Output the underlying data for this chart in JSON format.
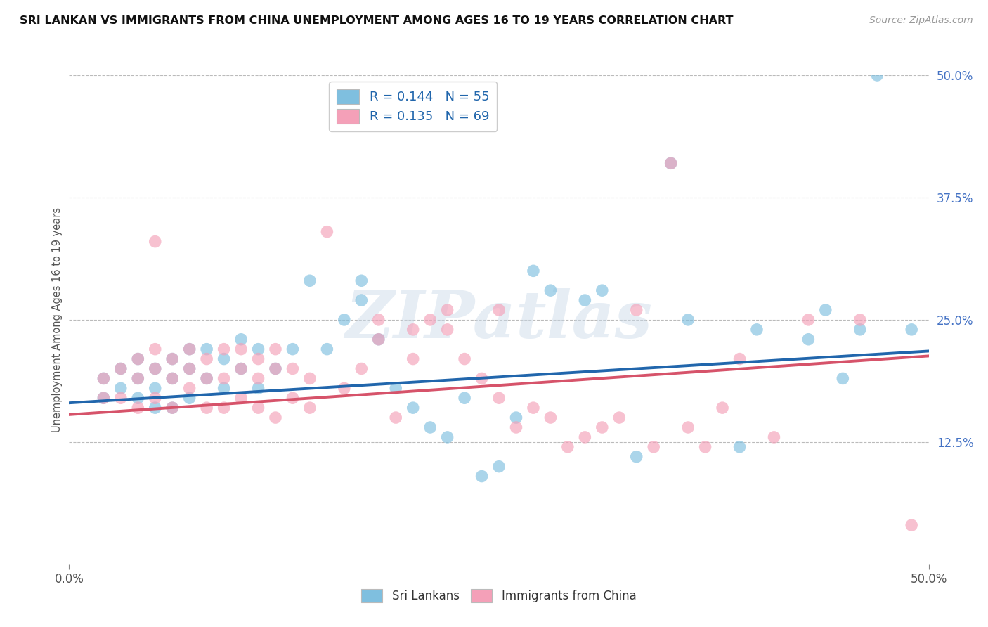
{
  "title": "SRI LANKAN VS IMMIGRANTS FROM CHINA UNEMPLOYMENT AMONG AGES 16 TO 19 YEARS CORRELATION CHART",
  "source": "Source: ZipAtlas.com",
  "ylabel": "Unemployment Among Ages 16 to 19 years",
  "legend_blue_r": "R = 0.144",
  "legend_blue_n": "N = 55",
  "legend_pink_r": "R = 0.135",
  "legend_pink_n": "N = 69",
  "blue_color": "#7fbfdf",
  "pink_color": "#f4a0b8",
  "line_blue": "#2166ac",
  "line_pink": "#d6536a",
  "watermark": "ZIPatlas",
  "xmin": 0.0,
  "xmax": 0.5,
  "ymin": 0.0,
  "ymax": 0.5,
  "blue_scatter_x": [
    0.47,
    0.35,
    0.27,
    0.28,
    0.3,
    0.31,
    0.02,
    0.02,
    0.03,
    0.03,
    0.04,
    0.04,
    0.04,
    0.05,
    0.05,
    0.05,
    0.06,
    0.06,
    0.06,
    0.07,
    0.07,
    0.07,
    0.08,
    0.08,
    0.09,
    0.09,
    0.1,
    0.1,
    0.11,
    0.11,
    0.12,
    0.13,
    0.14,
    0.15,
    0.16,
    0.17,
    0.17,
    0.18,
    0.19,
    0.2,
    0.21,
    0.22,
    0.23,
    0.24,
    0.25,
    0.26,
    0.33,
    0.36,
    0.39,
    0.4,
    0.43,
    0.44,
    0.45,
    0.46,
    0.49
  ],
  "blue_scatter_y": [
    0.5,
    0.41,
    0.3,
    0.28,
    0.27,
    0.28,
    0.19,
    0.17,
    0.2,
    0.18,
    0.21,
    0.19,
    0.17,
    0.2,
    0.18,
    0.16,
    0.21,
    0.19,
    0.16,
    0.22,
    0.2,
    0.17,
    0.22,
    0.19,
    0.21,
    0.18,
    0.23,
    0.2,
    0.22,
    0.18,
    0.2,
    0.22,
    0.29,
    0.22,
    0.25,
    0.27,
    0.29,
    0.23,
    0.18,
    0.16,
    0.14,
    0.13,
    0.17,
    0.09,
    0.1,
    0.15,
    0.11,
    0.25,
    0.12,
    0.24,
    0.23,
    0.26,
    0.19,
    0.24,
    0.24
  ],
  "pink_scatter_x": [
    0.05,
    0.25,
    0.33,
    0.39,
    0.43,
    0.49,
    0.02,
    0.02,
    0.03,
    0.03,
    0.04,
    0.04,
    0.04,
    0.05,
    0.05,
    0.05,
    0.06,
    0.06,
    0.06,
    0.07,
    0.07,
    0.07,
    0.08,
    0.08,
    0.08,
    0.09,
    0.09,
    0.09,
    0.1,
    0.1,
    0.1,
    0.11,
    0.11,
    0.11,
    0.12,
    0.12,
    0.12,
    0.13,
    0.13,
    0.14,
    0.14,
    0.15,
    0.16,
    0.17,
    0.18,
    0.18,
    0.19,
    0.2,
    0.2,
    0.21,
    0.22,
    0.22,
    0.23,
    0.24,
    0.25,
    0.26,
    0.27,
    0.28,
    0.29,
    0.3,
    0.31,
    0.32,
    0.34,
    0.35,
    0.36,
    0.37,
    0.38,
    0.41,
    0.46
  ],
  "pink_scatter_y": [
    0.33,
    0.26,
    0.26,
    0.21,
    0.25,
    0.04,
    0.19,
    0.17,
    0.2,
    0.17,
    0.21,
    0.19,
    0.16,
    0.22,
    0.2,
    0.17,
    0.21,
    0.19,
    0.16,
    0.22,
    0.2,
    0.18,
    0.21,
    0.19,
    0.16,
    0.22,
    0.19,
    0.16,
    0.22,
    0.2,
    0.17,
    0.21,
    0.19,
    0.16,
    0.22,
    0.2,
    0.15,
    0.2,
    0.17,
    0.19,
    0.16,
    0.34,
    0.18,
    0.2,
    0.25,
    0.23,
    0.15,
    0.24,
    0.21,
    0.25,
    0.26,
    0.24,
    0.21,
    0.19,
    0.17,
    0.14,
    0.16,
    0.15,
    0.12,
    0.13,
    0.14,
    0.15,
    0.12,
    0.41,
    0.14,
    0.12,
    0.16,
    0.13,
    0.25
  ]
}
